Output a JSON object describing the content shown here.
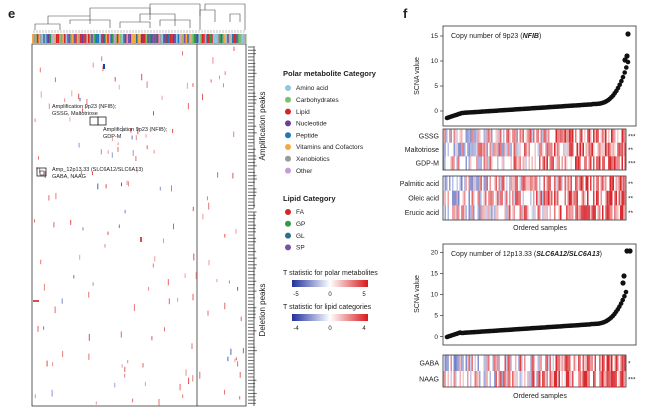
{
  "panel_e": {
    "letter": "e",
    "annotations": [
      "Amplification 9p23 (NFIB);",
      "GSSG, Maltotriose",
      "Amplification 9p23 (NFIB);",
      "GDP-M",
      "Amp_12p13.33 (SLC6A12/SLC6A13)",
      "GABA, NAAG"
    ],
    "right_labels": {
      "amplification": "Amplification peaks",
      "deletion": "Deletion peaks"
    },
    "legend": {
      "polar_title": "Polar metabolite Category",
      "polar_items": [
        {
          "label": "Amino acid",
          "color": "#8fc7e3"
        },
        {
          "label": "Carbohydrates",
          "color": "#7cbf6d"
        },
        {
          "label": "Lipid",
          "color": "#d7262a"
        },
        {
          "label": "Nucleotide",
          "color": "#6a3d9a"
        },
        {
          "label": "Peptide",
          "color": "#1f78b4"
        },
        {
          "label": "Vitamins and Cofactors",
          "color": "#f5a742"
        },
        {
          "label": "Xenobiotics",
          "color": "#9a9a9a"
        },
        {
          "label": "Other",
          "color": "#c79ad6"
        }
      ],
      "lipid_title": "Lipid Category",
      "lipid_items": [
        {
          "label": "FA",
          "color": "#d7262a"
        },
        {
          "label": "GP",
          "color": "#2e9b48"
        },
        {
          "label": "GL",
          "color": "#2b6f8a"
        },
        {
          "label": "SP",
          "color": "#7a52a3"
        }
      ],
      "tstat_polar_title": "T statistic for polar metabolites",
      "tstat_polar_ticks": [
        "-5",
        "0",
        "5"
      ],
      "tstat_lipid_title": "T statistic for lipid categories",
      "tstat_lipid_ticks": [
        "-4",
        "0",
        "4"
      ]
    }
  },
  "panel_f": {
    "letter": "f",
    "top": {
      "title_prefix": "Copy number of 9p23 (",
      "title_gene": "NFIB",
      "title_suffix": ")",
      "ylabel": "SCNA value",
      "yticks": [
        "15",
        "10",
        "5",
        "0"
      ],
      "yrange": [
        -3,
        17
      ],
      "rows1": [
        {
          "label": "GSSG",
          "sig": "***"
        },
        {
          "label": "Maltotriose",
          "sig": "**"
        },
        {
          "label": "GDP-M",
          "sig": "***"
        }
      ],
      "rows2": [
        {
          "label": "Palmitic acid",
          "sig": "**"
        },
        {
          "label": "Oleic acid",
          "sig": "**"
        },
        {
          "label": "Erucic acid",
          "sig": "**"
        }
      ],
      "xlabel": "Ordered samples"
    },
    "bottom": {
      "title_prefix": "Copy number of 12p13.33 (",
      "title_gene": "SLC6A12/SLC6A13",
      "title_suffix": ")",
      "ylabel": "SCNA value",
      "yticks": [
        "20",
        "15",
        "10",
        "5",
        "0"
      ],
      "yrange": [
        -2,
        22
      ],
      "rows": [
        {
          "label": "GABA",
          "sig": "*"
        },
        {
          "label": "NAAG",
          "sig": "***"
        }
      ],
      "xlabel": "Ordered samples"
    }
  }
}
